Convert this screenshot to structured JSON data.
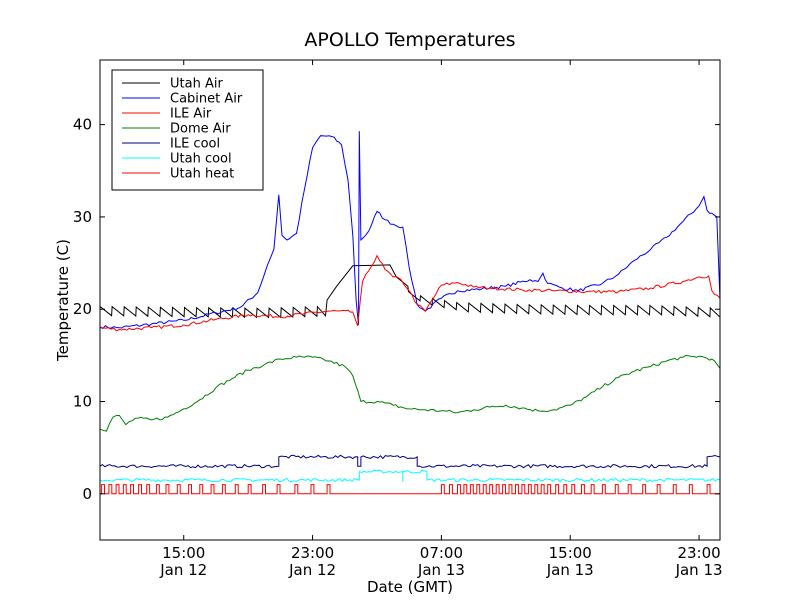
{
  "chart_data": {
    "type": "line",
    "title": "APOLLO Temperatures",
    "xlabel": "Date (GMT)",
    "ylabel": "Temperature (C)",
    "xlim": [
      9.8,
      48.3
    ],
    "ylim": [
      -5,
      47
    ],
    "yticks": [
      0,
      10,
      20,
      30,
      40
    ],
    "xticks": [
      {
        "x": 15,
        "line1": "15:00",
        "line2": "Jan 12"
      },
      {
        "x": 23,
        "line1": "23:00",
        "line2": "Jan 12"
      },
      {
        "x": 31,
        "line1": "07:00",
        "line2": "Jan 13"
      },
      {
        "x": 39,
        "line1": "15:00",
        "line2": "Jan 13"
      },
      {
        "x": 47,
        "line1": "23:00",
        "line2": "Jan 13"
      }
    ],
    "x_unit": "hours since 00:00 GMT Jan 12",
    "legend_position": "top-left",
    "series": [
      {
        "name": "Utah Air",
        "color": "#000000",
        "sawtooth": {
          "start": 9.8,
          "end": 48.3,
          "period": 0.75,
          "amplitude": 1.0,
          "ranges": [
            [
              9.8,
              23.8
            ],
            [
              28.2,
              48.3
            ]
          ]
        },
        "points": [
          [
            9.8,
            19.8
          ],
          [
            14,
            19.7
          ],
          [
            20,
            19.6
          ],
          [
            23.5,
            19.8
          ],
          [
            23.9,
            21
          ],
          [
            24.5,
            22.5
          ],
          [
            25.5,
            24.7
          ],
          [
            27.8,
            24.8
          ],
          [
            28.2,
            23
          ],
          [
            29,
            21.3
          ],
          [
            30,
            20.8
          ],
          [
            32,
            20.2
          ],
          [
            36,
            20.0
          ],
          [
            40,
            19.9
          ],
          [
            44,
            19.9
          ],
          [
            48.3,
            19.6
          ]
        ]
      },
      {
        "name": "Cabinet Air",
        "color": "#0000ff",
        "points": [
          [
            9.8,
            18.1
          ],
          [
            11,
            18.0
          ],
          [
            13,
            18.4
          ],
          [
            15,
            18.8
          ],
          [
            17,
            19.6
          ],
          [
            18.5,
            20.2
          ],
          [
            19.6,
            21.8
          ],
          [
            20.2,
            24.8
          ],
          [
            20.6,
            26.5
          ],
          [
            20.9,
            32.4
          ],
          [
            21.1,
            28
          ],
          [
            21.4,
            27.5
          ],
          [
            22,
            28.2
          ],
          [
            22.5,
            33
          ],
          [
            23,
            37.5
          ],
          [
            23.5,
            38.8
          ],
          [
            24.2,
            38.7
          ],
          [
            24.8,
            37.8
          ],
          [
            25.2,
            34
          ],
          [
            25.5,
            28
          ],
          [
            25.7,
            21
          ],
          [
            25.85,
            18.3
          ],
          [
            25.9,
            39.3
          ],
          [
            26.0,
            27.5
          ],
          [
            26.5,
            28.5
          ],
          [
            27,
            30.6
          ],
          [
            27.5,
            29.7
          ],
          [
            28,
            29.2
          ],
          [
            28.6,
            28.9
          ],
          [
            29,
            24.5
          ],
          [
            29.5,
            20.5
          ],
          [
            30,
            19.8
          ],
          [
            31,
            21.2
          ],
          [
            32,
            22.0
          ],
          [
            33.5,
            22.2
          ],
          [
            35,
            22.5
          ],
          [
            36.5,
            23.2
          ],
          [
            37,
            23.0
          ],
          [
            37.3,
            23.9
          ],
          [
            37.6,
            22.8
          ],
          [
            38.5,
            22.3
          ],
          [
            39.5,
            22.0
          ],
          [
            41,
            22.8
          ],
          [
            42,
            23.8
          ],
          [
            43,
            25.3
          ],
          [
            44,
            26.5
          ],
          [
            45,
            27.8
          ],
          [
            46,
            29.5
          ],
          [
            47,
            31.2
          ],
          [
            47.3,
            32.2
          ],
          [
            47.5,
            30.7
          ],
          [
            48.1,
            30.0
          ],
          [
            48.3,
            21.0
          ]
        ]
      },
      {
        "name": "ILE Air",
        "color": "#ff0000",
        "points": [
          [
            9.8,
            18.0
          ],
          [
            11,
            17.8
          ],
          [
            13,
            18.0
          ],
          [
            15,
            18.3
          ],
          [
            17,
            18.9
          ],
          [
            19,
            19.4
          ],
          [
            21,
            19.2
          ],
          [
            22.5,
            19.5
          ],
          [
            24,
            19.8
          ],
          [
            25.5,
            19.7
          ],
          [
            25.8,
            18.2
          ],
          [
            26.1,
            23.0
          ],
          [
            26.5,
            24.2
          ],
          [
            27,
            25.8
          ],
          [
            27.5,
            24.3
          ],
          [
            28,
            23.5
          ],
          [
            28.5,
            23.2
          ],
          [
            29,
            22.0
          ],
          [
            29.5,
            20.5
          ],
          [
            30,
            19.8
          ],
          [
            31,
            22.6
          ],
          [
            32,
            22.9
          ],
          [
            33,
            22.4
          ],
          [
            34,
            22.3
          ],
          [
            36,
            22.1
          ],
          [
            38,
            22.0
          ],
          [
            40,
            21.9
          ],
          [
            42,
            21.9
          ],
          [
            44,
            22.3
          ],
          [
            46,
            23.0
          ],
          [
            47,
            23.5
          ],
          [
            47.6,
            23.6
          ],
          [
            47.8,
            22.0
          ],
          [
            48.3,
            21.2
          ]
        ]
      },
      {
        "name": "Dome Air",
        "color": "#008000",
        "points": [
          [
            9.8,
            7.0
          ],
          [
            10.2,
            6.8
          ],
          [
            10.6,
            8.3
          ],
          [
            11,
            8.5
          ],
          [
            11.4,
            7.5
          ],
          [
            12,
            8.2
          ],
          [
            13,
            8.0
          ],
          [
            14,
            8.3
          ],
          [
            15,
            9.2
          ],
          [
            16,
            10.2
          ],
          [
            17,
            11.5
          ],
          [
            18,
            12.5
          ],
          [
            19,
            13.4
          ],
          [
            20,
            14.0
          ],
          [
            21,
            14.6
          ],
          [
            22,
            14.8
          ],
          [
            23,
            14.8
          ],
          [
            24,
            14.4
          ],
          [
            25,
            13.8
          ],
          [
            25.5,
            12.8
          ],
          [
            26,
            10.0
          ],
          [
            27,
            10.0
          ],
          [
            28,
            9.6
          ],
          [
            29,
            9.2
          ],
          [
            30,
            9.1
          ],
          [
            31,
            9.0
          ],
          [
            32,
            8.8
          ],
          [
            33,
            9.1
          ],
          [
            34,
            9.4
          ],
          [
            35,
            9.6
          ],
          [
            36,
            9.3
          ],
          [
            37,
            9.0
          ],
          [
            38,
            9.1
          ],
          [
            39,
            9.6
          ],
          [
            40,
            10.5
          ],
          [
            41,
            11.6
          ],
          [
            42,
            12.6
          ],
          [
            43,
            13.3
          ],
          [
            44,
            13.8
          ],
          [
            45,
            14.4
          ],
          [
            46,
            14.8
          ],
          [
            47,
            14.9
          ],
          [
            47.8,
            14.6
          ],
          [
            48.3,
            13.6
          ]
        ]
      },
      {
        "name": "ILE cool",
        "color": "#000080",
        "points": [
          [
            9.8,
            3.0
          ],
          [
            20.9,
            3.0
          ],
          [
            20.9,
            4.0
          ],
          [
            25.8,
            4.0
          ],
          [
            25.8,
            3.0
          ],
          [
            26.0,
            3.0
          ],
          [
            26.0,
            4.0
          ],
          [
            29.5,
            4.0
          ],
          [
            29.5,
            3.0
          ],
          [
            47.5,
            3.0
          ],
          [
            47.5,
            4.0
          ],
          [
            48.3,
            4.0
          ]
        ]
      },
      {
        "name": "Utah cool",
        "color": "#00ffff",
        "points": [
          [
            9.8,
            1.5
          ],
          [
            25.9,
            1.5
          ],
          [
            25.9,
            2.4
          ],
          [
            28.6,
            2.4
          ],
          [
            28.6,
            1.3
          ],
          [
            28.6,
            2.4
          ],
          [
            30.1,
            2.4
          ],
          [
            30.1,
            1.5
          ],
          [
            48.3,
            1.5
          ]
        ]
      },
      {
        "name": "Utah heat",
        "color": "#ff0000",
        "pulses": {
          "base": 0.0,
          "high": 1.0,
          "width": 0.18,
          "times": [
            9.9,
            10.35,
            10.8,
            11.25,
            11.7,
            12.2,
            12.7,
            13.3,
            13.9,
            14.6,
            15.3,
            16.0,
            16.7,
            17.4,
            18.2,
            19.0,
            19.9,
            20.8,
            21.9,
            22.9,
            23.9,
            31.0,
            31.5,
            32.0,
            32.4,
            32.8,
            33.2,
            33.6,
            34.0,
            34.4,
            34.8,
            35.2,
            35.6,
            36.0,
            36.4,
            36.8,
            37.2,
            37.6,
            38.1,
            38.6,
            39.1,
            39.7,
            40.3,
            41.0,
            41.8,
            42.6,
            43.5,
            44.4,
            45.4,
            46.4,
            47.5
          ]
        }
      }
    ]
  }
}
